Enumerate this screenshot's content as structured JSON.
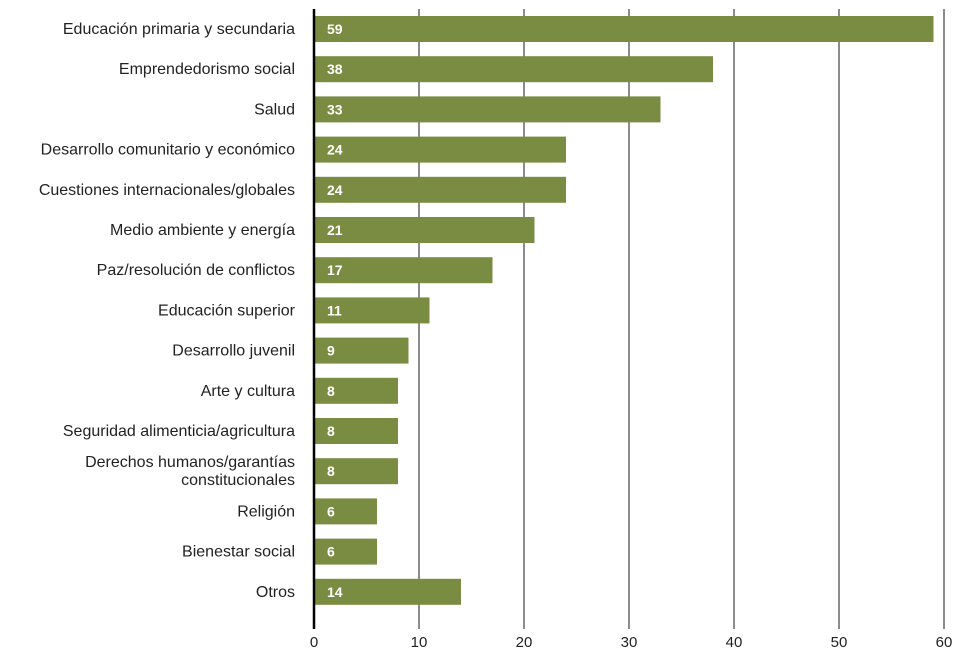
{
  "chart_data": {
    "type": "bar",
    "orientation": "horizontal",
    "categories": [
      [
        "Educación primaria y secundaria"
      ],
      [
        "Emprendedorismo social"
      ],
      [
        "Salud"
      ],
      [
        "Desarrollo comunitario y económico"
      ],
      [
        "Cuestiones internacionales/globales"
      ],
      [
        "Medio ambiente y energía"
      ],
      [
        "Paz/resolución de conflictos"
      ],
      [
        "Educación superior"
      ],
      [
        "Desarrollo juvenil"
      ],
      [
        "Arte y cultura"
      ],
      [
        "Seguridad alimenticia/agricultura"
      ],
      [
        "Derechos humanos/garantías",
        "constitucionales"
      ],
      [
        "Religión"
      ],
      [
        "Bienestar social"
      ],
      [
        "Otros"
      ]
    ],
    "values": [
      59,
      38,
      33,
      24,
      24,
      21,
      17,
      11,
      9,
      8,
      8,
      8,
      6,
      6,
      14
    ],
    "xlim": [
      0,
      60
    ],
    "xticks": [
      0,
      10,
      20,
      30,
      40,
      50,
      60
    ],
    "grid": "vertical",
    "bar_color": "#7a8c42",
    "grid_color": "#1a1a1a",
    "show_data_labels": true
  }
}
